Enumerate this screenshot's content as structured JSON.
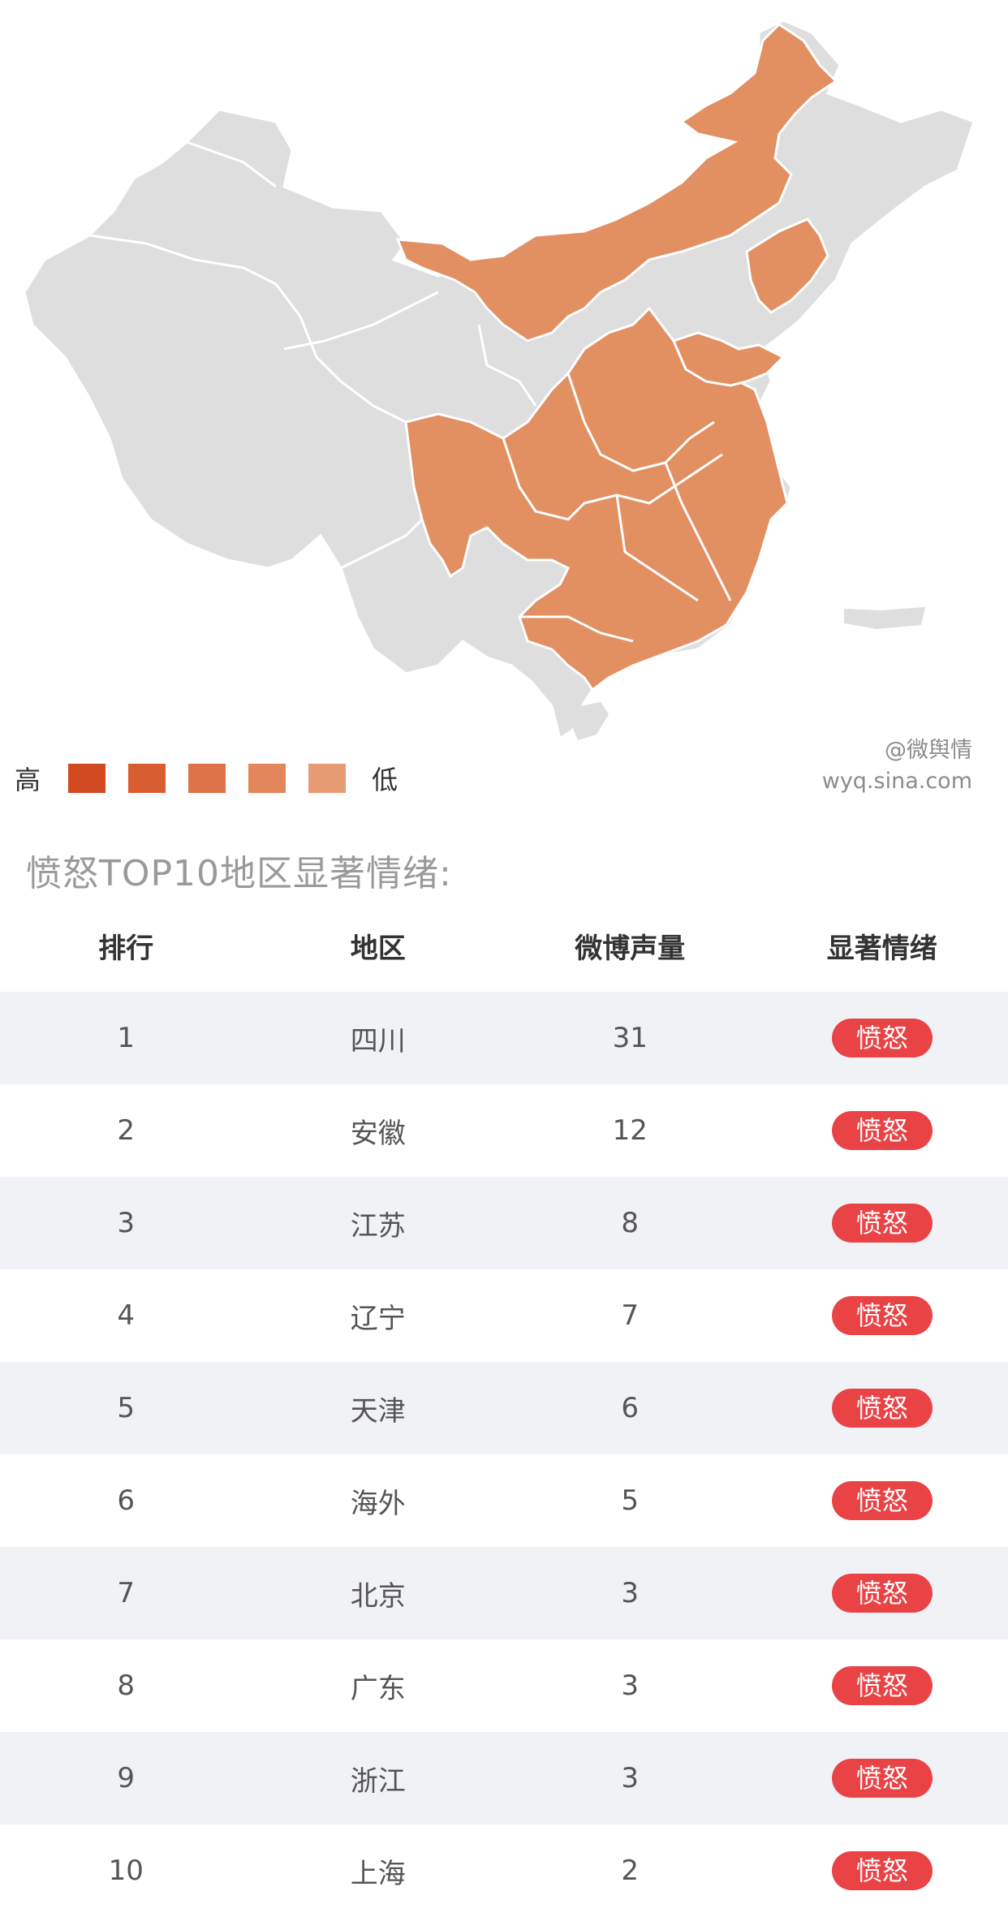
{
  "map": {
    "legend_high": "高",
    "legend_low": "低",
    "legend_colors": [
      "#d14a22",
      "#d85e32",
      "#de7248",
      "#e3865c",
      "#e89c74"
    ],
    "highlight_color": "#e28f62",
    "base_color": "#dedede",
    "watermark_line1": "@微舆情",
    "watermark_line2": "wyq.sina.com"
  },
  "section_title": "愤怒TOP10地区显著情绪:",
  "table": {
    "headers": [
      "排行",
      "地区",
      "微博声量",
      "显著情绪"
    ],
    "rows": [
      {
        "rank": "1",
        "region": "四川",
        "volume": "31",
        "emotion": "愤怒"
      },
      {
        "rank": "2",
        "region": "安徽",
        "volume": "12",
        "emotion": "愤怒"
      },
      {
        "rank": "3",
        "region": "江苏",
        "volume": "8",
        "emotion": "愤怒"
      },
      {
        "rank": "4",
        "region": "辽宁",
        "volume": "7",
        "emotion": "愤怒"
      },
      {
        "rank": "5",
        "region": "天津",
        "volume": "6",
        "emotion": "愤怒"
      },
      {
        "rank": "6",
        "region": "海外",
        "volume": "5",
        "emotion": "愤怒"
      },
      {
        "rank": "7",
        "region": "北京",
        "volume": "3",
        "emotion": "愤怒"
      },
      {
        "rank": "8",
        "region": "广东",
        "volume": "3",
        "emotion": "愤怒"
      },
      {
        "rank": "9",
        "region": "浙江",
        "volume": "3",
        "emotion": "愤怒"
      },
      {
        "rank": "10",
        "region": "上海",
        "volume": "2",
        "emotion": "愤怒"
      }
    ]
  }
}
